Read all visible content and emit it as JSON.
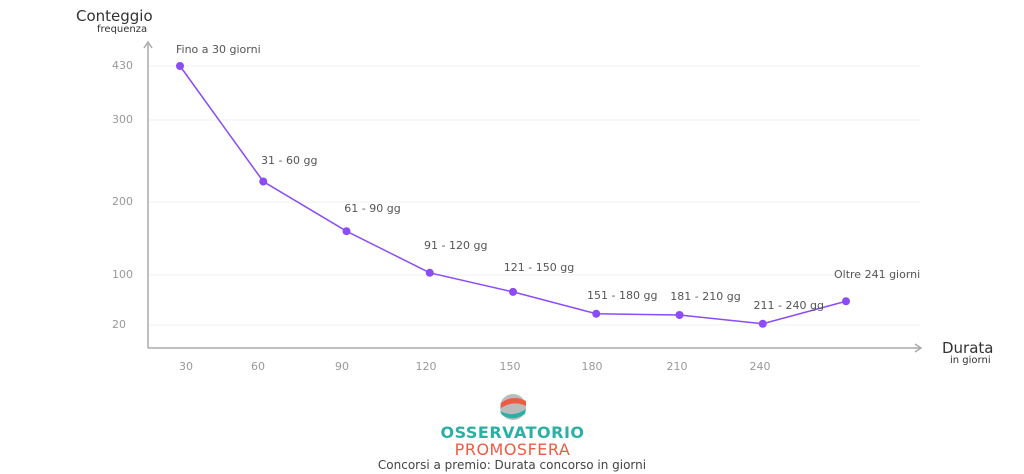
{
  "chart_data": {
    "type": "line",
    "ylabel": "Conteggio",
    "ylabel_sub": "frequenza",
    "xlabel": "Durata",
    "xlabel_sub": "in giorni",
    "y_ticks": [
      430,
      300,
      200,
      100,
      20
    ],
    "x_ticks": [
      "30",
      "60",
      "90",
      "120",
      "150",
      "180",
      "210",
      "240"
    ],
    "grid": true,
    "color": "#8b4cf7",
    "points": [
      {
        "label": "Fino a 30 giorni",
        "value": 430
      },
      {
        "label": "31 - 60 gg",
        "value": 225
      },
      {
        "label": "61 - 90 gg",
        "value": 160
      },
      {
        "label": "91 - 120 gg",
        "value": 103
      },
      {
        "label": "121 - 150 gg",
        "value": 73
      },
      {
        "label": "151 - 180 gg",
        "value": 38
      },
      {
        "label": "181 - 210 gg",
        "value": 36
      },
      {
        "label": "211 - 240 gg",
        "value": 22
      },
      {
        "label": "Oltre 241 giorni",
        "value": 58
      }
    ]
  },
  "logo": {
    "line1": "OSSERVATORIO",
    "line2": "PROMOSFERA"
  },
  "caption": "Concorsi a premio: Durata concorso in giorni"
}
